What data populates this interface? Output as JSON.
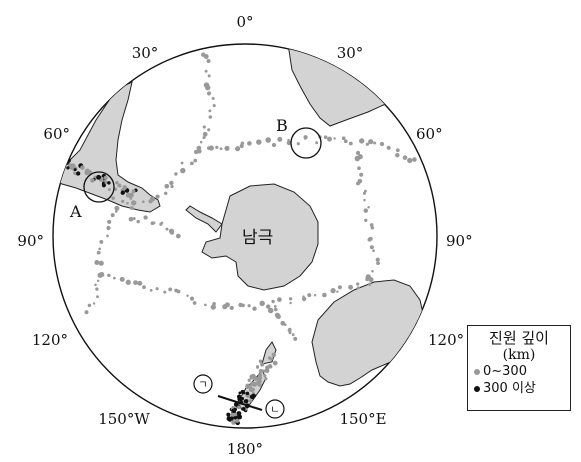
{
  "map": {
    "longitude_labels": {
      "top": "0°",
      "upper_left": "30°",
      "upper_right": "30°",
      "left_60": "60°",
      "right_60": "60°",
      "left_90": "90°",
      "right_90": "90°",
      "left_120": "120°",
      "right_120": "120°",
      "lower_left": "150°W",
      "lower_right": "150°E",
      "bottom": "180°"
    },
    "region_label": "남극",
    "markers": {
      "a": "A",
      "b": "B",
      "giyeok": "ㄱ",
      "nieun": "ㄴ"
    },
    "colors": {
      "shallow": "#999999",
      "deep": "#111111",
      "land": "#d3d3d3"
    }
  },
  "legend": {
    "title": "진원 깊이",
    "unit": "(km)",
    "items": [
      {
        "label": "0~300",
        "color": "#999999"
      },
      {
        "label": "300 이상",
        "color": "#111111"
      }
    ]
  }
}
